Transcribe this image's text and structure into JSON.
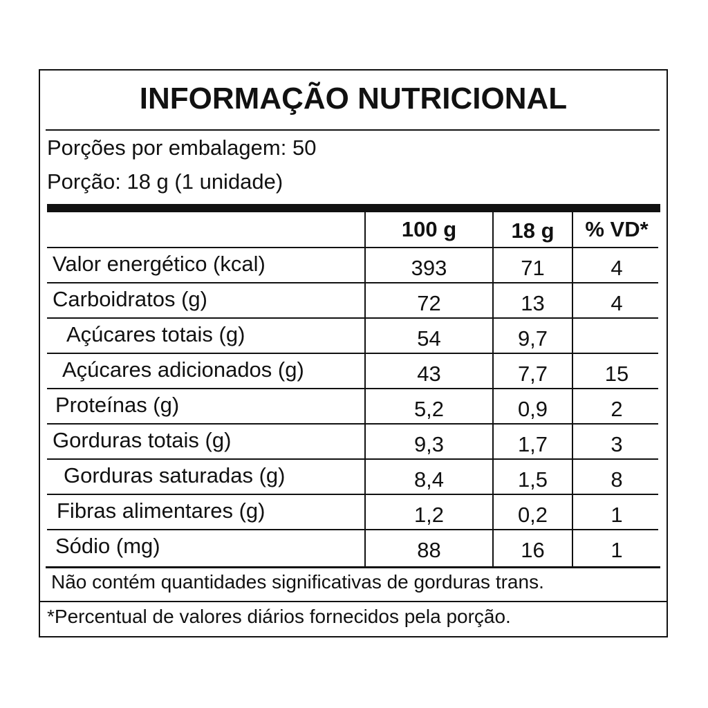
{
  "title": "INFORMAÇÃO NUTRICIONAL",
  "servings_per_package": "Porções por embalagem: 50",
  "serving_size": "Porção: 18 g (1 unidade)",
  "columns": [
    "100 g",
    "18 g",
    "% VD*"
  ],
  "rows": [
    {
      "label": "Valor energético (kcal)",
      "per100": "393",
      "perServing": "71",
      "vd": "4",
      "indent": 0
    },
    {
      "label": "Carboidratos (g)",
      "per100": "72",
      "perServing": "13",
      "vd": "4",
      "indent": 0
    },
    {
      "label": "Açúcares totais (g)",
      "per100": "54",
      "perServing": "9,7",
      "vd": "",
      "indent": 1
    },
    {
      "label": "Açúcares adicionados (g)",
      "per100": "43",
      "perServing": "7,7",
      "vd": "15",
      "indent": 1
    },
    {
      "label": "Proteínas (g)",
      "per100": "5,2",
      "perServing": "0,9",
      "vd": "2",
      "indent": 0
    },
    {
      "label": "Gorduras totais (g)",
      "per100": "9,3",
      "perServing": "1,7",
      "vd": "3",
      "indent": 0
    },
    {
      "label": "Gorduras saturadas (g)",
      "per100": "8,4",
      "perServing": "1,5",
      "vd": "8",
      "indent": 1
    },
    {
      "label": "Fibras alimentares (g)",
      "per100": "1,2",
      "perServing": "0,2",
      "vd": "1",
      "indent": 0
    },
    {
      "label": "Sódio (mg)",
      "per100": "88",
      "perServing": "16",
      "vd": "1",
      "indent": 0
    }
  ],
  "note_trans": "Não contém quantidades significativas de gorduras trans.",
  "note_vd": "*Percentual de valores diários fornecidos pela porção."
}
